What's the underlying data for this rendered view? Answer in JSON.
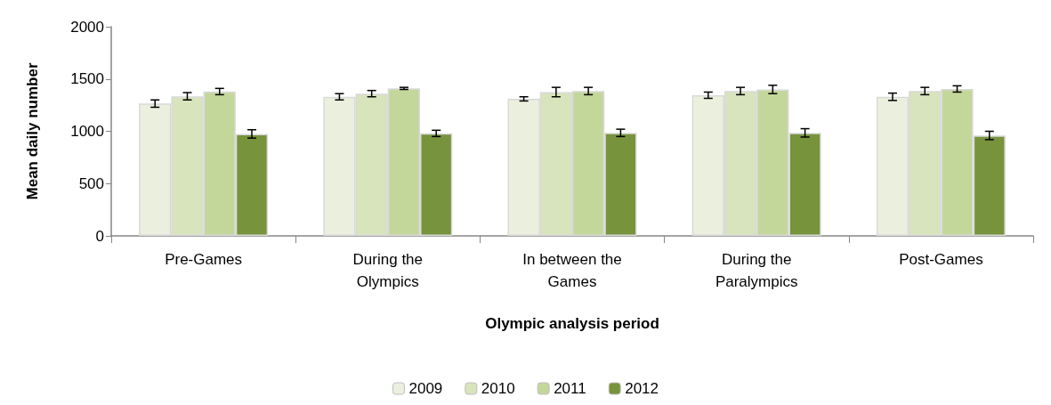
{
  "chart_data": {
    "type": "bar",
    "xlabel": "Olympic analysis period",
    "ylabel": "Mean daily number",
    "categories": [
      "Pre-Games",
      "During the\nOlympics",
      "In between the\nGames",
      "During the\nParalympics",
      "Post-Games"
    ],
    "series": [
      {
        "name": "2009",
        "color": "#ebf0de",
        "values": [
          1265,
          1330,
          1310,
          1345,
          1330
        ],
        "errors": [
          35,
          30,
          20,
          30,
          35
        ]
      },
      {
        "name": "2010",
        "color": "#d8e4bc",
        "values": [
          1335,
          1360,
          1375,
          1385,
          1385
        ],
        "errors": [
          35,
          30,
          45,
          35,
          35
        ]
      },
      {
        "name": "2011",
        "color": "#c4d79b",
        "values": [
          1380,
          1410,
          1385,
          1400,
          1405
        ],
        "errors": [
          30,
          10,
          35,
          40,
          30
        ]
      },
      {
        "name": "2012",
        "color": "#77933c",
        "values": [
          975,
          980,
          985,
          985,
          960
        ],
        "errors": [
          40,
          30,
          35,
          40,
          40
        ]
      }
    ],
    "ylim": [
      0,
      2000
    ],
    "yticks": [
      0,
      500,
      1000,
      1500,
      2000
    ],
    "grid": false,
    "legend": "bottom"
  }
}
